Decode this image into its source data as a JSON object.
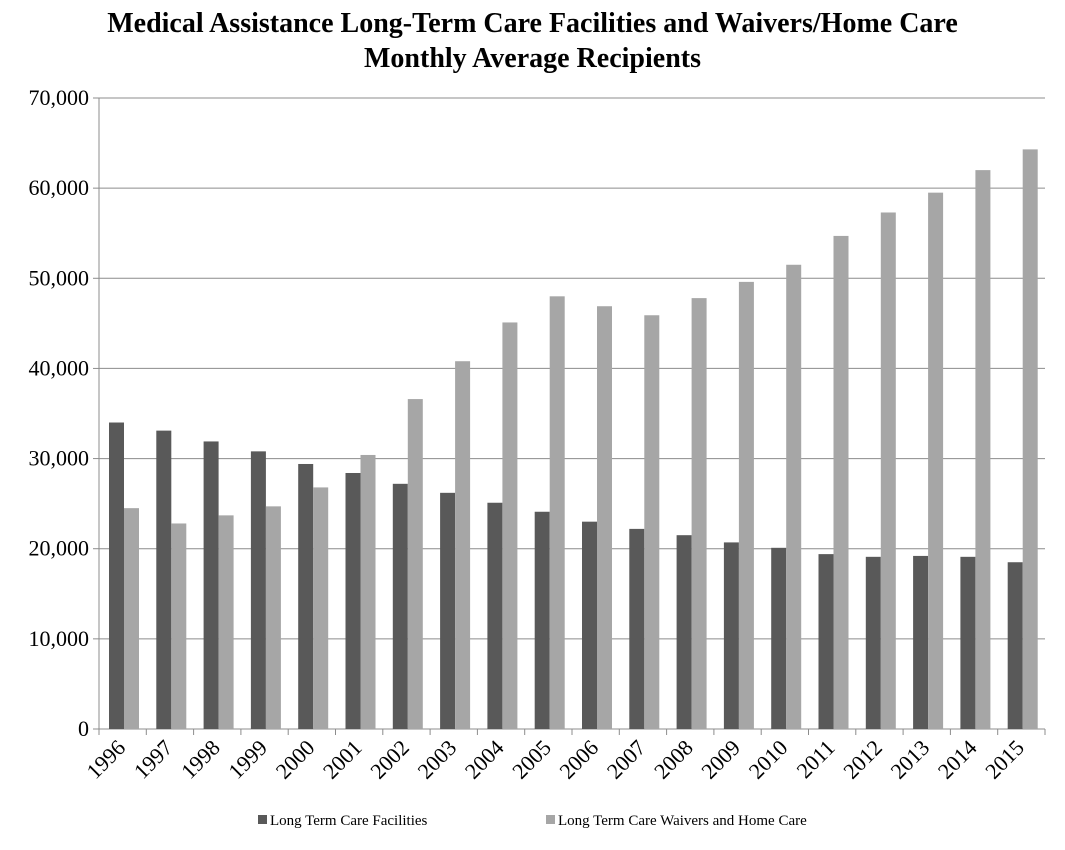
{
  "chart_data": {
    "type": "bar",
    "title_line1": "Medical Assistance Long-Term Care Facilities and Waivers/Home Care",
    "title_line2": "Monthly Average Recipients",
    "categories": [
      "1996",
      "1997",
      "1998",
      "1999",
      "2000",
      "2001",
      "2002",
      "2003",
      "2004",
      "2005",
      "2006",
      "2007",
      "2008",
      "2009",
      "2010",
      "2011",
      "2012",
      "2013",
      "2014",
      "2015"
    ],
    "series": [
      {
        "name": "Long Term Care Facilities",
        "color": "#595959",
        "values": [
          34000,
          33100,
          31900,
          30800,
          29400,
          28400,
          27200,
          26200,
          25100,
          24100,
          23000,
          22200,
          21500,
          20700,
          20100,
          19400,
          19100,
          19200,
          19100,
          18500
        ]
      },
      {
        "name": "Long Term Care Waivers and Home Care",
        "color": "#a6a6a6",
        "values": [
          24500,
          22800,
          23700,
          24700,
          26800,
          30400,
          36600,
          40800,
          45100,
          48000,
          46900,
          45900,
          47800,
          49600,
          51500,
          54700,
          57300,
          59500,
          62000,
          64300
        ]
      }
    ],
    "yticks": [
      "0",
      "10,000",
      "20,000",
      "30,000",
      "40,000",
      "50,000",
      "60,000",
      "70,000"
    ],
    "ylim": [
      0,
      70000
    ],
    "grid": true,
    "legend_position": "bottom"
  }
}
